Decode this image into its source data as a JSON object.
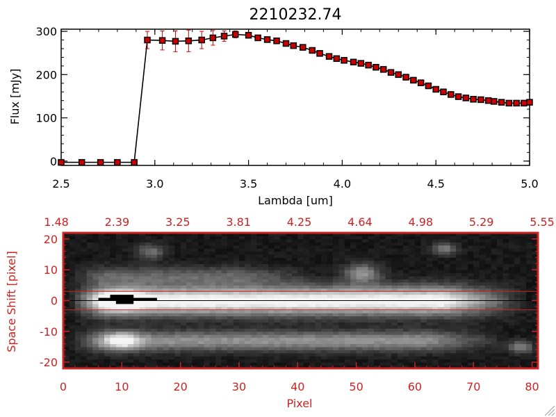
{
  "chart_data": [
    {
      "type": "line",
      "title": "2210232.74",
      "xlabel": "Lambda [um]",
      "ylabel": "Flux [mJy]",
      "xlim": [
        2.5,
        5.0
      ],
      "ylim": [
        -10,
        305
      ],
      "xticks": [
        "2.5",
        "3.0",
        "3.5",
        "4.0",
        "4.5",
        "5.0"
      ],
      "yticks": [
        "0",
        "100",
        "200",
        "300"
      ],
      "colors": {
        "line": "#000000",
        "marker": "#cc0000",
        "errorbar": "#cc0000",
        "axis": "#000000"
      },
      "series": [
        {
          "x": [
            2.5,
            2.61,
            2.71,
            2.8,
            2.89,
            2.96,
            3.04,
            3.11,
            3.18,
            3.25,
            3.31,
            3.37,
            3.43,
            3.5,
            3.55,
            3.6,
            3.65,
            3.7,
            3.74,
            3.79,
            3.84,
            3.88,
            3.93,
            3.97,
            4.01,
            4.06,
            4.1,
            4.14,
            4.18,
            4.22,
            4.26,
            4.3,
            4.34,
            4.38,
            4.42,
            4.46,
            4.5,
            4.54,
            4.58,
            4.62,
            4.66,
            4.7,
            4.74,
            4.78,
            4.81,
            4.85,
            4.89,
            4.93,
            4.97,
            5.0
          ],
          "y": [
            -3,
            -3,
            -3,
            -3,
            -3,
            280,
            279,
            277,
            278,
            280,
            285,
            289,
            293,
            291,
            285,
            281,
            278,
            272,
            267,
            263,
            256,
            249,
            242,
            237,
            233,
            229,
            226,
            222,
            217,
            212,
            205,
            200,
            194,
            187,
            181,
            174,
            166,
            160,
            154,
            149,
            146,
            143,
            142,
            140,
            138,
            136,
            134,
            134,
            134,
            136
          ],
          "yerr": [
            0,
            0,
            0,
            0,
            0,
            20,
            22,
            24,
            25,
            20,
            17,
            12,
            8,
            6,
            4,
            3,
            3,
            3,
            3,
            3,
            3,
            3,
            3,
            3,
            3,
            3,
            3,
            3,
            3,
            3,
            3,
            3,
            3,
            3,
            3,
            3,
            3,
            3,
            3,
            3,
            3,
            3,
            3,
            3,
            3,
            3,
            3,
            3,
            3,
            3
          ]
        }
      ]
    },
    {
      "type": "heatmap",
      "xlabel": "Pixel",
      "ylabel": "Space Shift [pixel]",
      "xlim": [
        0,
        81
      ],
      "ylim": [
        -22,
        22
      ],
      "xticks": [
        "0",
        "10",
        "20",
        "30",
        "40",
        "50",
        "60",
        "70",
        "80"
      ],
      "yticks": [
        "-20",
        "-10",
        "0",
        "10",
        "20"
      ],
      "top_axis_ticks": [
        "1.48",
        "2.39",
        "3.25",
        "3.81",
        "4.25",
        "4.64",
        "4.98",
        "5.29",
        "5.55"
      ],
      "extraction_window": [
        -3,
        3
      ],
      "grid": false,
      "colormap": "grayscale",
      "colors": {
        "axis": "#cc2222",
        "window": "#cc2222",
        "trace": "#000000"
      },
      "features": [
        {
          "kind": "trace",
          "x_start": 3,
          "x_end": 75,
          "y_center": 0,
          "width": 4.5,
          "intensity": 0.95
        },
        {
          "kind": "trace",
          "x_start": 3,
          "x_end": 72,
          "y_center": -13,
          "width": 3.2,
          "intensity": 0.5
        },
        {
          "kind": "trace",
          "x_start": 3,
          "x_end": 40,
          "y_center": 8,
          "width": 3.0,
          "intensity": 0.3
        },
        {
          "kind": "blob",
          "x": 10,
          "y": -13,
          "width": 3.0,
          "intensity": 0.55
        },
        {
          "kind": "blob",
          "x": 15,
          "y": 16,
          "width": 2.5,
          "intensity": 0.35
        },
        {
          "kind": "blob",
          "x": 51,
          "y": 9,
          "width": 3.0,
          "intensity": 0.5
        },
        {
          "kind": "blob",
          "x": 65,
          "y": 17,
          "width": 2.0,
          "intensity": 0.4
        },
        {
          "kind": "blob",
          "x": 78,
          "y": -15,
          "width": 2.0,
          "intensity": 0.45
        },
        {
          "kind": "blob",
          "x": 10,
          "y": 0,
          "width": 3.5,
          "intensity": 0.4
        }
      ],
      "masked_pixels": [
        [
          6,
          0
        ],
        [
          7,
          0
        ],
        [
          8,
          0
        ],
        [
          9,
          0
        ],
        [
          10,
          0
        ],
        [
          11,
          0
        ],
        [
          12,
          0
        ],
        [
          13,
          0
        ],
        [
          14,
          0
        ],
        [
          15,
          0
        ],
        [
          8,
          1
        ],
        [
          9,
          1
        ],
        [
          10,
          1
        ],
        [
          11,
          1
        ],
        [
          9,
          -1
        ],
        [
          10,
          -1
        ],
        [
          11,
          -1
        ]
      ]
    }
  ]
}
